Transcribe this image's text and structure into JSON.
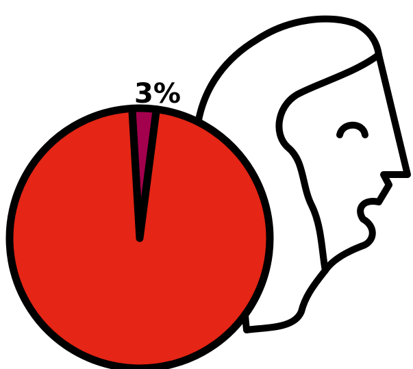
{
  "chart_data": {
    "type": "pie",
    "title": "",
    "slices": [
      {
        "value": 97,
        "color": "#e52515"
      },
      {
        "value": 3,
        "label": "3%",
        "color": "#a3004d"
      }
    ],
    "start_angle_deg": 2,
    "outline_color": "#000000"
  },
  "illustration": {
    "subject": "woman-head-profile-icon",
    "fill": "#ffffff",
    "stroke": "#000000"
  }
}
